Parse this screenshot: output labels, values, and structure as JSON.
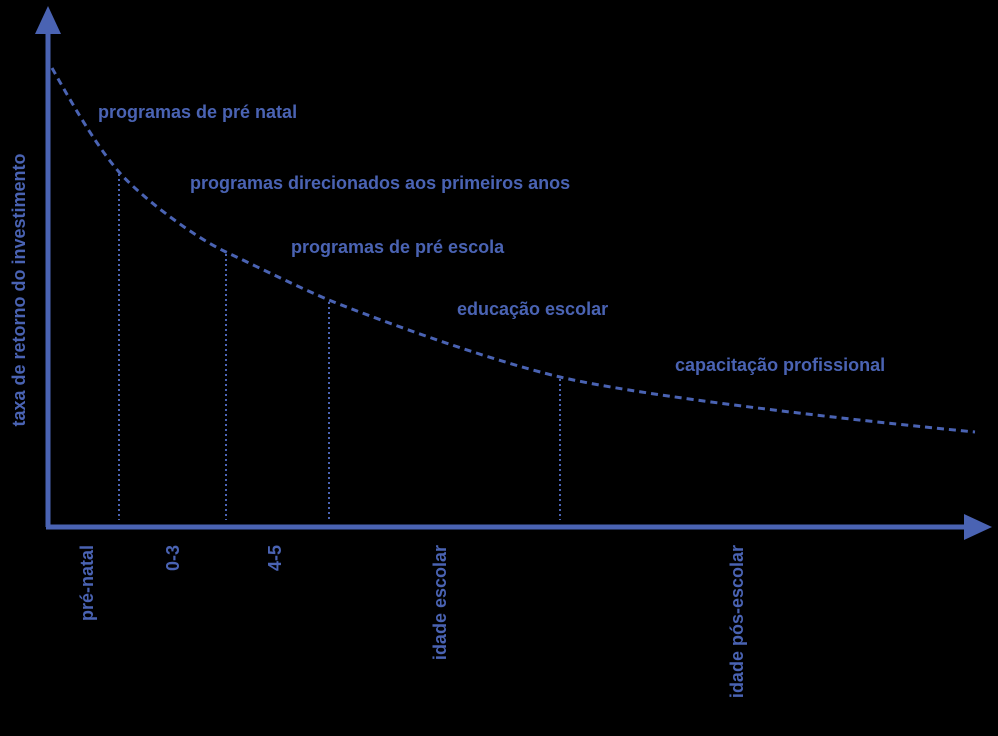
{
  "y_axis_label": "taxa de retorno do investimento",
  "curve_labels": [
    "programas de pré natal",
    "programas direcionados aos primeiros anos",
    "programas de pré escola",
    "educação escolar",
    "capacitação profissional"
  ],
  "x_labels": [
    "pré-natal",
    "0-3",
    "4-5",
    "idade escolar",
    "idade pós-escolar"
  ]
}
